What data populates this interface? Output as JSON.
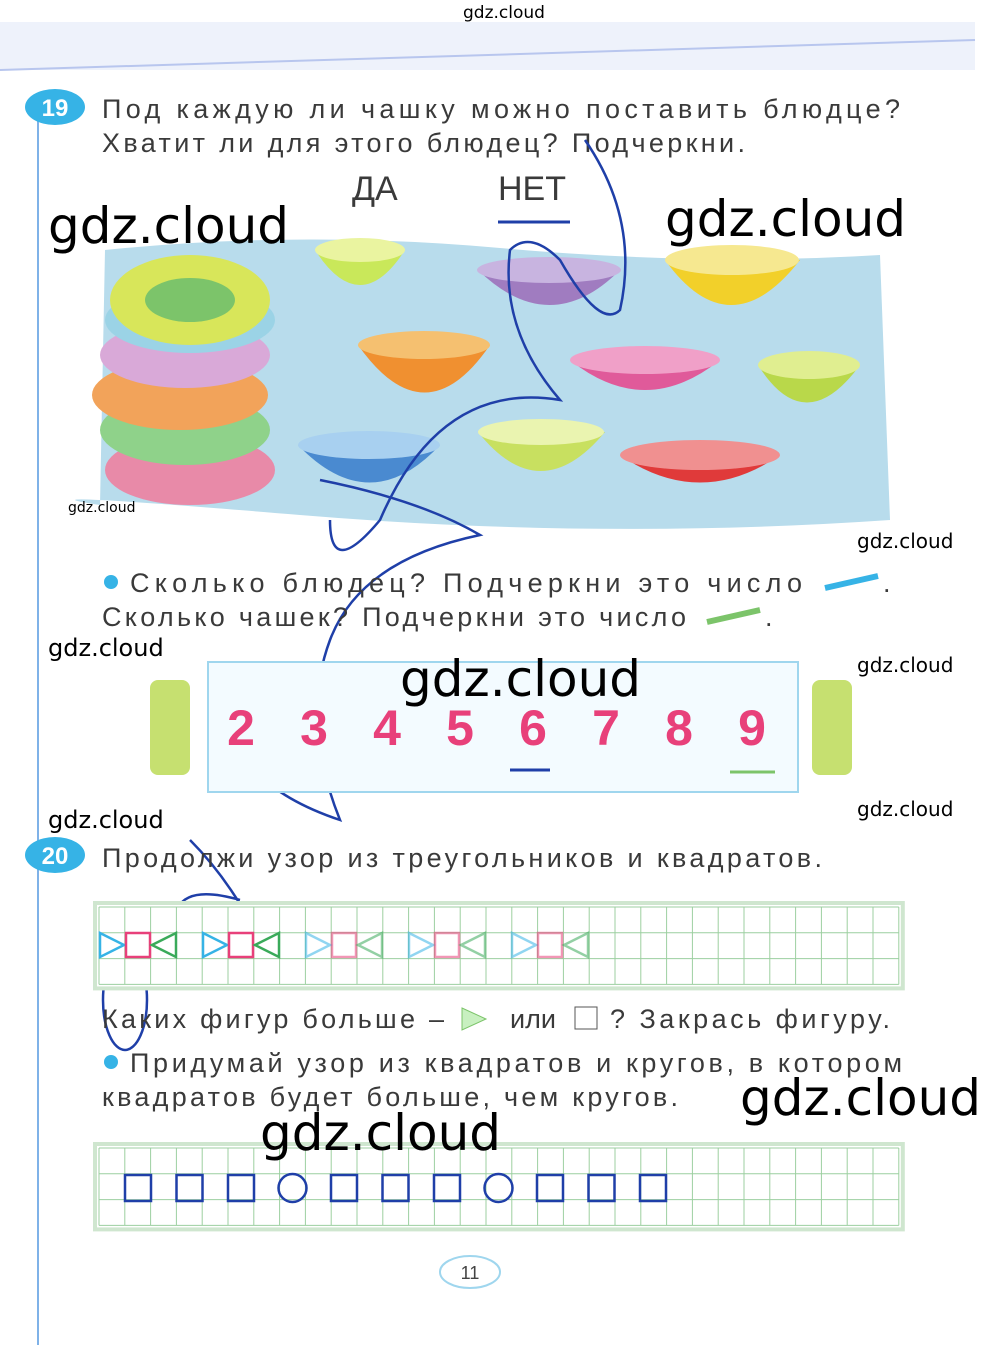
{
  "watermarks": [
    "gdz.cloud",
    "gdz.cloud",
    "gdz.cloud",
    "gdz.cloud",
    "gdz.cloud",
    "gdz.cloud",
    "gdz.cloud",
    "gdz.cloud",
    "gdz.cloud",
    "gdz.cloud",
    "gdz.cloud",
    "gdz.cloud"
  ],
  "task19": {
    "number": "19",
    "lines": [
      "Под каждую ли чашку можно поставить блюдце?",
      "Хватит ли для этого блюдец? Подчеркни."
    ],
    "options": [
      "ДА",
      "НЕТ"
    ],
    "questions": [
      {
        "text": "Сколько блюдец? Подчеркни это число",
        "end": "."
      },
      {
        "text": "Сколько чашек? Подчеркни это число",
        "end": "."
      }
    ],
    "numbers": [
      "2",
      "3",
      "4",
      "5",
      "6",
      "7",
      "8",
      "9"
    ]
  },
  "task20": {
    "number": "20",
    "text": "Продолжи узор из треугольников и квадратов.",
    "question": [
      "Каких фигур больше –",
      "или",
      "? Закрась фигуру."
    ],
    "bullet_lines": [
      "Придумай узор из квадратов и кругов, в котором",
      "квадратов будет больше, чем кругов."
    ]
  },
  "page_number": "11"
}
